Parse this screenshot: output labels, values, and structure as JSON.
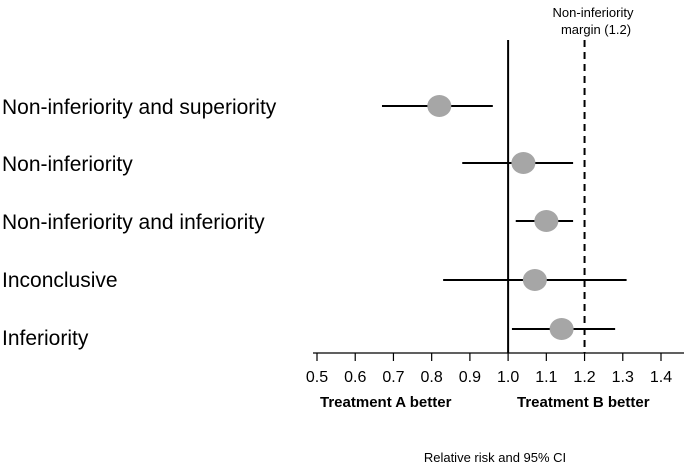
{
  "chart_data": {
    "type": "forest",
    "categories": [
      "Non-inferiority and superiority",
      "Non-inferiority",
      "Non-inferiority and inferiority",
      "Inconclusive",
      "Inferiority"
    ],
    "points": [
      {
        "label": "Non-inferiority and superiority",
        "estimate": 0.82,
        "ci_low": 0.67,
        "ci_high": 0.96
      },
      {
        "label": "Non-inferiority",
        "estimate": 1.04,
        "ci_low": 0.88,
        "ci_high": 1.17
      },
      {
        "label": "Non-inferiority and inferiority",
        "estimate": 1.1,
        "ci_low": 1.02,
        "ci_high": 1.17
      },
      {
        "label": "Inconclusive",
        "estimate": 1.07,
        "ci_low": 0.83,
        "ci_high": 1.31
      },
      {
        "label": "Inferiority",
        "estimate": 1.14,
        "ci_low": 1.01,
        "ci_high": 1.28
      }
    ],
    "x_ticks": [
      "0.5",
      "0.6",
      "0.7",
      "0.8",
      "0.9",
      "1.0",
      "1.1",
      "1.2",
      "1.3",
      "1.4"
    ],
    "xlim": [
      0.5,
      1.4
    ],
    "reference_line": 1.0,
    "margin_line": 1.2,
    "margin_label_line1": "Non-inferiority",
    "margin_label_line2": "margin (1.2)",
    "left_side_label": "Treatment A better",
    "right_side_label": "Treatment B better",
    "xlabel": "Relative risk and 95% CI",
    "colors": {
      "point": "#a6a6a6",
      "line": "#000000"
    }
  }
}
